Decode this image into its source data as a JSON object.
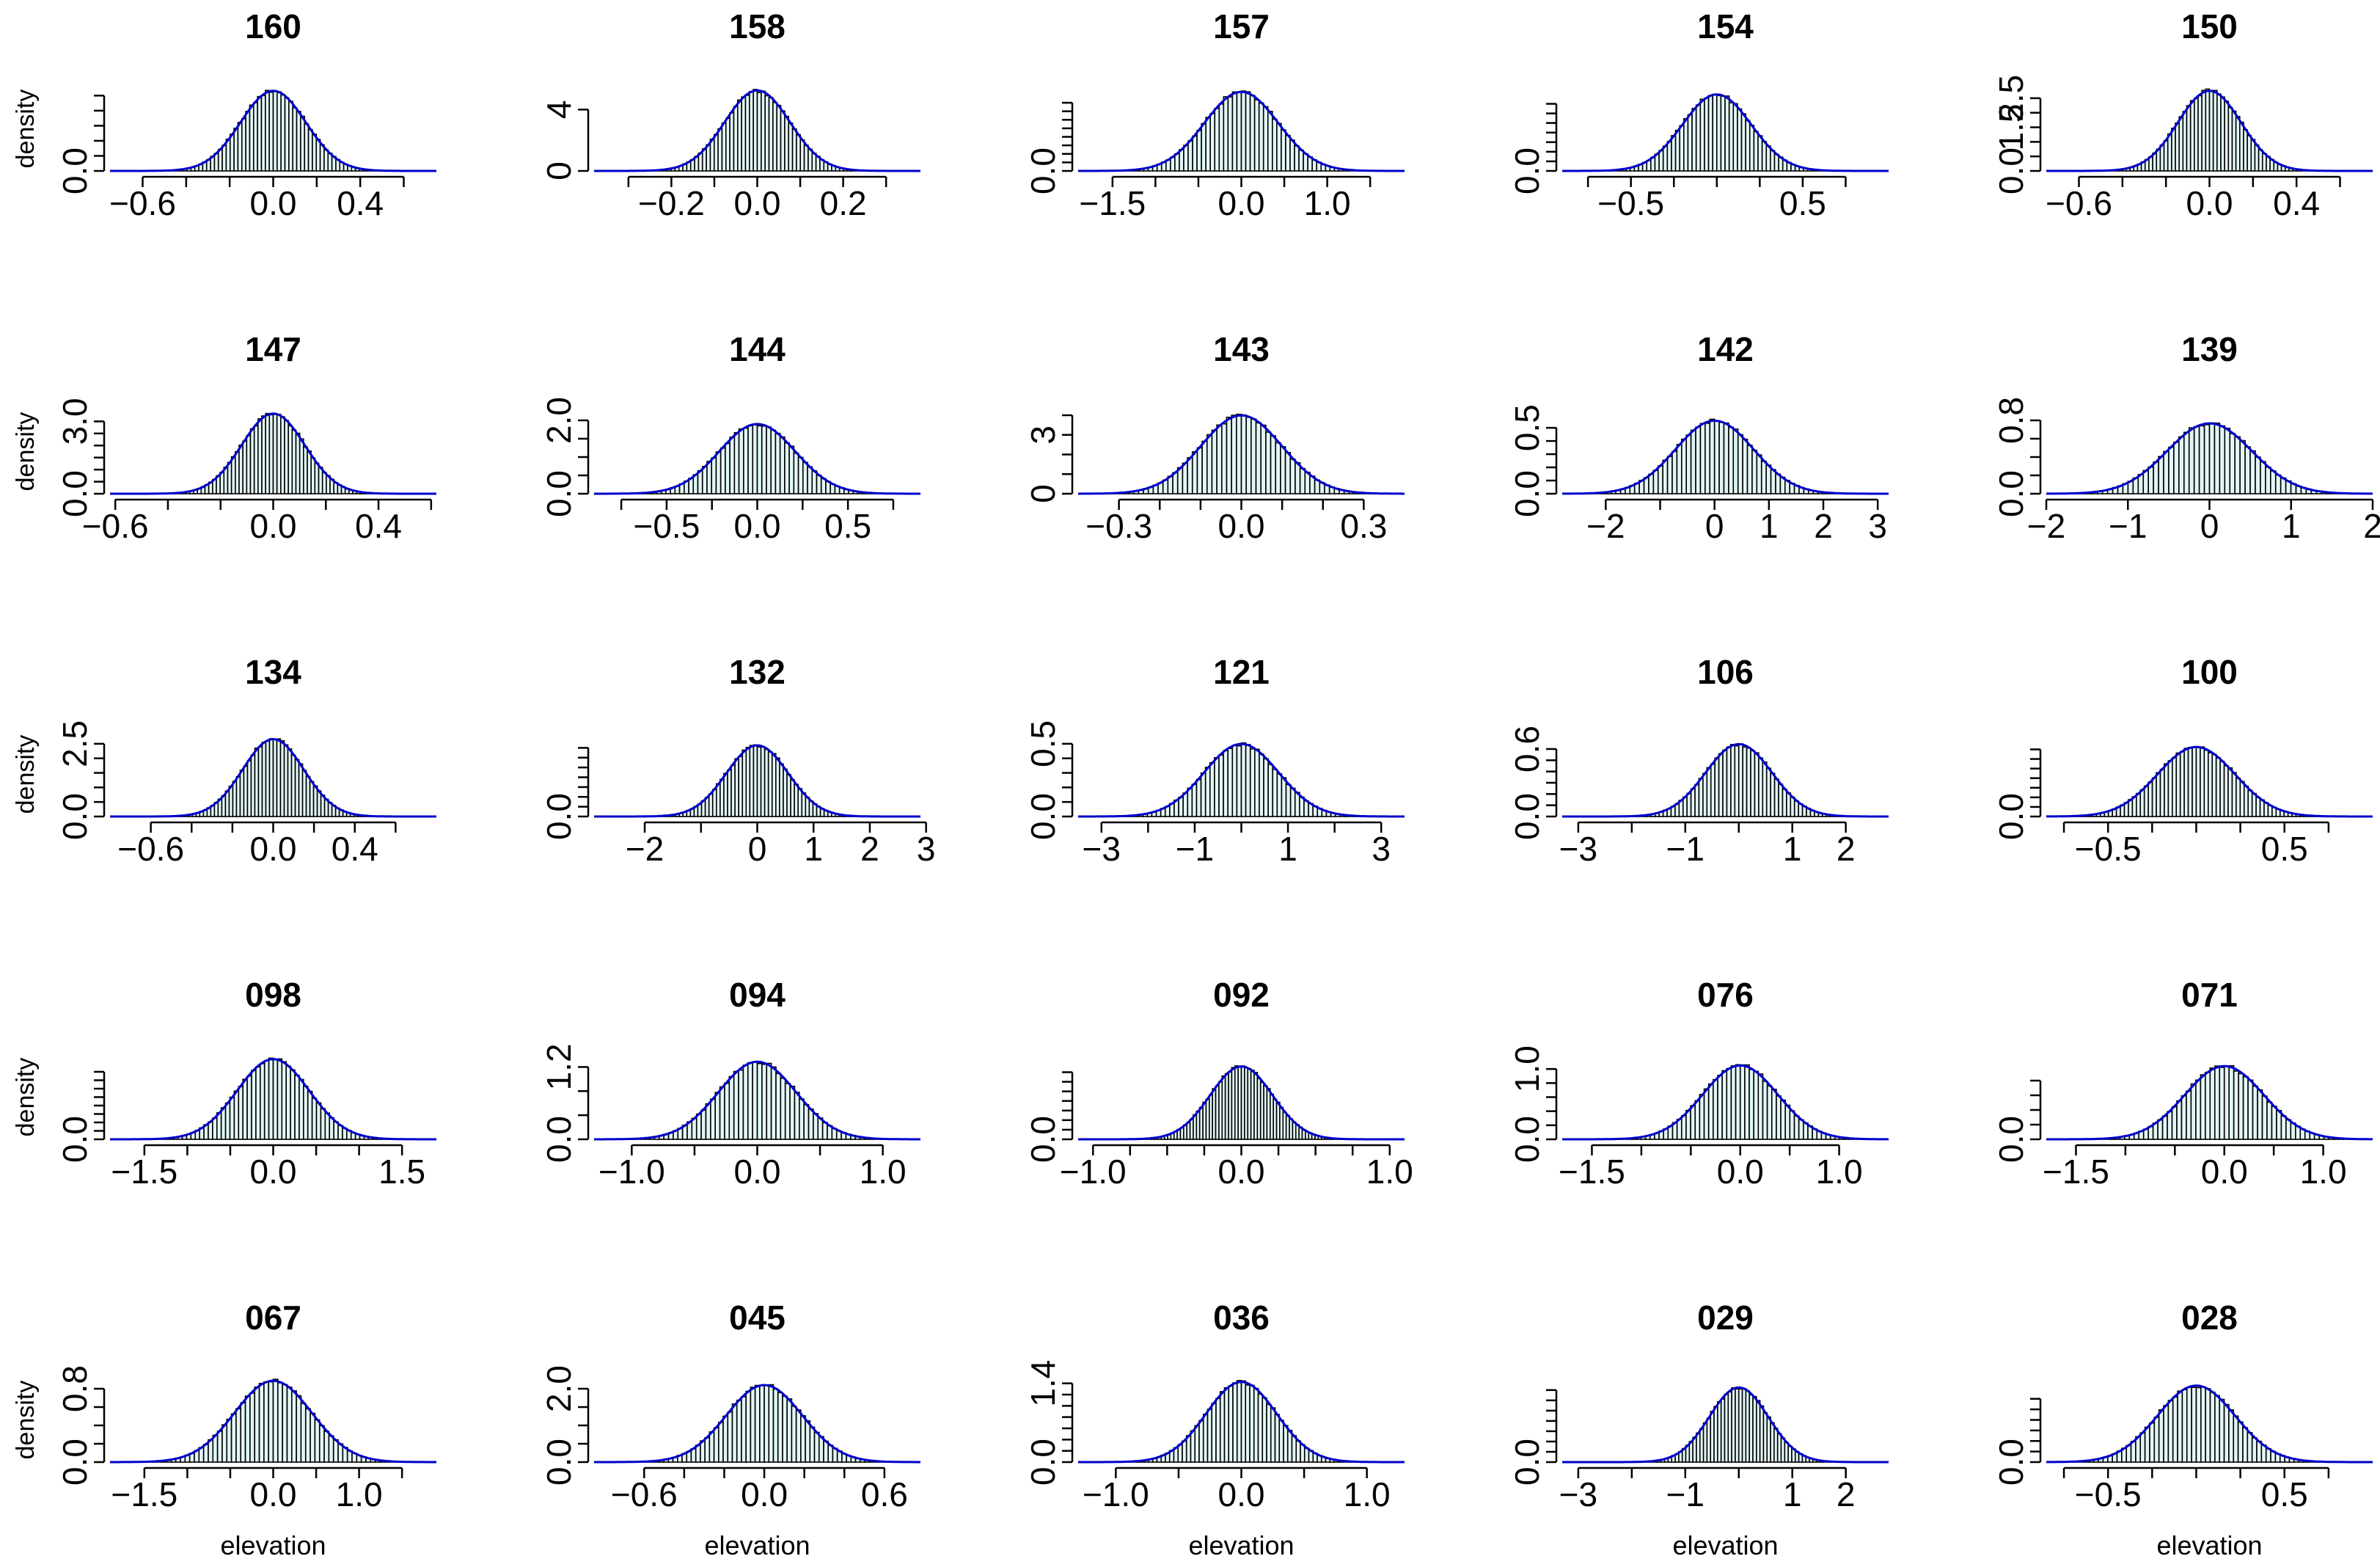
{
  "figure": {
    "ylabel": "density",
    "xlabel": "elevation",
    "colors": {
      "bar_fill": "#e3f5f5",
      "bar_stroke": "#000000",
      "curve": "#0000cc",
      "axis": "#000000"
    }
  },
  "chart_data": [
    {
      "type": "bar",
      "title": "160",
      "sd": 0.15,
      "xlim": [
        -0.75,
        0.75
      ],
      "xticks": [
        -0.6,
        -0.4,
        -0.2,
        0.0,
        0.2,
        0.4,
        0.6
      ],
      "xticklabels": [
        "−0.6",
        "",
        "",
        "0.0",
        "",
        "0.4",
        ""
      ],
      "ylim": [
        0,
        2.8
      ],
      "yticks": [
        0,
        0.5,
        1.0,
        1.5,
        2.0,
        2.5
      ],
      "yticklabels": [
        "0.0",
        "",
        "",
        "",
        "",
        ""
      ],
      "bins": 60
    },
    {
      "type": "bar",
      "title": "158",
      "sd": 0.076,
      "xlim": [
        -0.38,
        0.38
      ],
      "xticks": [
        -0.3,
        -0.2,
        -0.1,
        0.0,
        0.1,
        0.2,
        0.3
      ],
      "xticklabels": [
        "",
        "−0.2",
        "",
        "0.0",
        "",
        "0.2",
        ""
      ],
      "ylim": [
        0,
        5.5
      ],
      "yticks": [
        0,
        4
      ],
      "yticklabels": [
        "0",
        "4"
      ],
      "bins": 60
    },
    {
      "type": "bar",
      "title": "157",
      "sd": 0.43,
      "xlim": [
        -1.9,
        1.9
      ],
      "xticks": [
        -1.5,
        -1.0,
        -0.5,
        0.0,
        0.5,
        1.0,
        1.5
      ],
      "xticklabels": [
        "−1.5",
        "",
        "",
        "0.0",
        "",
        "1.0",
        ""
      ],
      "ylim": [
        0,
        0.99
      ],
      "yticks": [
        0,
        0.1,
        0.2,
        0.3,
        0.4,
        0.5,
        0.6,
        0.7,
        0.8
      ],
      "yticklabels": [
        "0.0",
        "",
        "",
        "",
        "",
        "",
        "",
        "",
        ""
      ],
      "bins": 60
    },
    {
      "type": "bar",
      "title": "154",
      "sd": 0.2,
      "xlim": [
        -0.9,
        1.0
      ],
      "xticks": [
        -0.75,
        -0.5,
        -0.25,
        0.0,
        0.25,
        0.5,
        0.75
      ],
      "xticklabels": [
        "",
        "−0.5",
        "",
        "",
        "",
        "0.5",
        ""
      ],
      "ylim": [
        0,
        2.2
      ],
      "yticks": [
        0,
        0.25,
        0.5,
        0.75,
        1.0,
        1.25,
        1.5,
        1.75
      ],
      "yticklabels": [
        "0.0",
        "",
        "",
        "",
        "",
        "",
        "",
        ""
      ],
      "bins": 60
    },
    {
      "type": "bar",
      "title": "150",
      "sd": 0.145,
      "xlim": [
        -0.75,
        0.75
      ],
      "xticks": [
        -0.6,
        -0.4,
        -0.2,
        0.0,
        0.2,
        0.4,
        0.6
      ],
      "xticklabels": [
        "−0.6",
        "",
        "",
        "0.0",
        "",
        "0.4",
        ""
      ],
      "ylim": [
        0,
        2.9
      ],
      "yticks": [
        0,
        0.5,
        1.0,
        1.5,
        2.0,
        2.5
      ],
      "yticklabels": [
        "0.0",
        "",
        "",
        "1.5",
        "",
        "2.5"
      ],
      "bins": 60
    },
    {
      "type": "bar",
      "title": "147",
      "sd": 0.12,
      "xlim": [
        -0.62,
        0.62
      ],
      "xticks": [
        -0.6,
        -0.4,
        -0.2,
        0.0,
        0.2,
        0.4,
        0.6
      ],
      "xticklabels": [
        "−0.6",
        "",
        "",
        "0.0",
        "",
        "0.4",
        ""
      ],
      "ylim": [
        0,
        3.5
      ],
      "yticks": [
        0,
        0.5,
        1.0,
        1.5,
        2.0,
        2.5,
        3.0
      ],
      "yticklabels": [
        "0.0",
        "",
        "",
        "",
        "",
        "",
        "3.0"
      ],
      "bins": 60
    },
    {
      "type": "bar",
      "title": "144",
      "sd": 0.21,
      "xlim": [
        -0.9,
        0.9
      ],
      "xticks": [
        -0.75,
        -0.5,
        -0.25,
        0.0,
        0.25,
        0.5,
        0.75
      ],
      "xticklabels": [
        "",
        "−0.5",
        "",
        "0.0",
        "",
        "0.5",
        ""
      ],
      "ylim": [
        0,
        2.3
      ],
      "yticks": [
        0,
        0.5,
        1.0,
        1.5,
        2.0
      ],
      "yticklabels": [
        "0.0",
        "",
        "",
        "",
        "2.0"
      ],
      "bins": 60
    },
    {
      "type": "bar",
      "title": "143",
      "sd": 0.1,
      "xlim": [
        -0.4,
        0.4
      ],
      "xticks": [
        -0.3,
        -0.2,
        -0.1,
        0.0,
        0.1,
        0.2,
        0.3
      ],
      "xticklabels": [
        "−0.3",
        "",
        "",
        "0.0",
        "",
        "",
        "0.3"
      ],
      "ylim": [
        0,
        4.3
      ],
      "yticks": [
        0,
        1,
        2,
        3,
        4
      ],
      "yticklabels": [
        "0",
        "",
        "",
        "3",
        ""
      ],
      "bins": 60
    },
    {
      "type": "bar",
      "title": "142",
      "sd": 0.72,
      "xlim": [
        -2.8,
        3.2
      ],
      "xticks": [
        -2,
        -1,
        0,
        1,
        2,
        3
      ],
      "xticklabels": [
        "−2",
        "",
        "0",
        "1",
        "2",
        "3"
      ],
      "ylim": [
        0,
        0.64
      ],
      "yticks": [
        0,
        0.1,
        0.2,
        0.3,
        0.4,
        0.5
      ],
      "yticklabels": [
        "0.0",
        "",
        "",
        "",
        "",
        "0.5"
      ],
      "bins": 60
    },
    {
      "type": "bar",
      "title": "139",
      "sd": 0.52,
      "xlim": [
        -2.0,
        2.0
      ],
      "xticks": [
        -2,
        -1,
        0,
        1,
        2
      ],
      "xticklabels": [
        "−2",
        "−1",
        "0",
        "1",
        "2"
      ],
      "ylim": [
        0,
        0.92
      ],
      "yticks": [
        0,
        0.2,
        0.4,
        0.6,
        0.8
      ],
      "yticklabels": [
        "0.0",
        "",
        "",
        "",
        "0.8"
      ],
      "bins": 60
    },
    {
      "type": "bar",
      "title": "134",
      "sd": 0.15,
      "xlim": [
        -0.8,
        0.8
      ],
      "xticks": [
        -0.6,
        -0.4,
        -0.2,
        0.0,
        0.2,
        0.4,
        0.6
      ],
      "xticklabels": [
        "−0.6",
        "",
        "",
        "0.0",
        "",
        "0.4",
        ""
      ],
      "ylim": [
        0,
        2.9
      ],
      "yticks": [
        0,
        0.5,
        1.0,
        1.5,
        2.0,
        2.5
      ],
      "yticklabels": [
        "0.0",
        "",
        "",
        "",
        "",
        "2.5"
      ],
      "bins": 60
    },
    {
      "type": "bar",
      "title": "132",
      "sd": 0.55,
      "xlim": [
        -2.9,
        2.9
      ],
      "xticks": [
        -2,
        -1,
        0,
        1,
        2,
        3
      ],
      "xticklabels": [
        "−2",
        "",
        "0",
        "1",
        "2",
        "3"
      ],
      "ylim": [
        0,
        0.86
      ],
      "yticks": [
        0,
        0.1,
        0.2,
        0.3,
        0.4,
        0.5,
        0.6,
        0.7
      ],
      "yticklabels": [
        "0.0",
        "",
        "",
        "",
        "",
        "",
        "",
        ""
      ],
      "bins": 60
    },
    {
      "type": "bar",
      "title": "121",
      "sd": 0.8,
      "xlim": [
        -3.5,
        3.5
      ],
      "xticks": [
        -3,
        -2,
        -1,
        0,
        1,
        2,
        3
      ],
      "xticklabels": [
        "−3",
        "",
        "−1",
        "",
        "1",
        "",
        "3"
      ],
      "ylim": [
        0,
        0.58
      ],
      "yticks": [
        0,
        0.1,
        0.2,
        0.3,
        0.4,
        0.5
      ],
      "yticklabels": [
        "0.0",
        "",
        "",
        "",
        "",
        "0.5"
      ],
      "bins": 60
    },
    {
      "type": "bar",
      "title": "106",
      "sd": 0.62,
      "xlim": [
        -3.3,
        2.8
      ],
      "xticks": [
        -3,
        -2,
        -1,
        0,
        1,
        2
      ],
      "xticklabels": [
        "−3",
        "",
        "−1",
        "",
        "1",
        "2"
      ],
      "ylim": [
        0,
        0.75
      ],
      "yticks": [
        0,
        0.1,
        0.2,
        0.3,
        0.4,
        0.5,
        0.6
      ],
      "yticklabels": [
        "0.0",
        "",
        "",
        "",
        "",
        "",
        "0.6"
      ],
      "bins": 60
    },
    {
      "type": "bar",
      "title": "100",
      "sd": 0.22,
      "xlim": [
        -0.85,
        1.0
      ],
      "xticks": [
        -0.75,
        -0.5,
        -0.25,
        0.0,
        0.25,
        0.5,
        0.75
      ],
      "xticklabels": [
        "",
        "−0.5",
        "",
        "",
        "",
        "0.5",
        ""
      ],
      "ylim": [
        0,
        2.2
      ],
      "yticks": [
        0,
        0.25,
        0.5,
        0.75,
        1.0,
        1.25,
        1.5,
        1.75
      ],
      "yticklabels": [
        "0.0",
        "",
        "",
        "",
        "",
        "",
        "",
        ""
      ],
      "bins": 70
    },
    {
      "type": "bar",
      "title": "098",
      "sd": 0.42,
      "xlim": [
        -1.9,
        1.9
      ],
      "xticks": [
        -1.5,
        -1.0,
        -0.5,
        0.0,
        0.5,
        1.0,
        1.5
      ],
      "xticklabels": [
        "−1.5",
        "",
        "",
        "0.0",
        "",
        "",
        "1.5"
      ],
      "ylim": [
        0,
        1.0
      ],
      "yticks": [
        0,
        0.1,
        0.2,
        0.3,
        0.4,
        0.5,
        0.6,
        0.7,
        0.8
      ],
      "yticklabels": [
        "0.0",
        "",
        "",
        "",
        "",
        "",
        "",
        "",
        ""
      ],
      "bins": 60
    },
    {
      "type": "bar",
      "title": "094",
      "sd": 0.31,
      "xlim": [
        -1.3,
        1.3
      ],
      "xticks": [
        -1.0,
        -0.5,
        0.0,
        0.5,
        1.0
      ],
      "xticklabels": [
        "−1.0",
        "",
        "0.0",
        "",
        "1.0"
      ],
      "ylim": [
        0,
        1.4
      ],
      "yticks": [
        0,
        0.4,
        0.8,
        1.2
      ],
      "yticklabels": [
        "0.0",
        "",
        "",
        "1.2"
      ],
      "bins": 60
    },
    {
      "type": "bar",
      "title": "092",
      "sd": 0.21,
      "xlim": [
        -1.1,
        1.1
      ],
      "xticks": [
        -1.0,
        -0.75,
        -0.5,
        -0.25,
        0.0,
        0.25,
        0.5,
        0.75,
        1.0
      ],
      "xticklabels": [
        "−1.0",
        "",
        "",
        "",
        "0.0",
        "",
        "",
        "",
        "1.0"
      ],
      "ylim": [
        0,
        2.2
      ],
      "yticks": [
        0,
        0.25,
        0.5,
        0.75,
        1.0,
        1.25,
        1.5,
        1.75
      ],
      "yticklabels": [
        "0.0",
        "",
        "",
        "",
        "",
        "",
        "",
        ""
      ],
      "bins": 70
    },
    {
      "type": "bar",
      "title": "076",
      "sd": 0.38,
      "xlim": [
        -1.8,
        1.5
      ],
      "xticks": [
        -1.5,
        -1.0,
        -0.5,
        0.0,
        0.5,
        1.0
      ],
      "xticklabels": [
        "−1.5",
        "",
        "",
        "0.0",
        "",
        "1.0"
      ],
      "ylim": [
        0,
        1.2
      ],
      "yticks": [
        0,
        0.2,
        0.4,
        0.6,
        0.8,
        1.0
      ],
      "yticklabels": [
        "0.0",
        "",
        "",
        "",
        "",
        "1.0"
      ],
      "bins": 60
    },
    {
      "type": "bar",
      "title": "071",
      "sd": 0.4,
      "xlim": [
        -1.8,
        1.5
      ],
      "xticks": [
        -1.5,
        -1.0,
        -0.5,
        0.0,
        0.5,
        1.0
      ],
      "xticklabels": [
        "−1.5",
        "",
        "",
        "0.0",
        "",
        "1.0"
      ],
      "ylim": [
        0,
        1.15
      ],
      "yticks": [
        0,
        0.2,
        0.4,
        0.6,
        0.8
      ],
      "yticklabels": [
        "0.0",
        "",
        "",
        "",
        ""
      ],
      "bins": 60
    },
    {
      "type": "bar",
      "title": "067",
      "sd": 0.45,
      "xlim": [
        -1.9,
        1.9
      ],
      "xticks": [
        -1.5,
        -1.0,
        -0.5,
        0.0,
        0.5,
        1.0,
        1.5
      ],
      "xticklabels": [
        "−1.5",
        "",
        "",
        "0.0",
        "",
        "1.0",
        ""
      ],
      "ylim": [
        0,
        0.92
      ],
      "yticks": [
        0,
        0.2,
        0.4,
        0.6,
        0.8
      ],
      "yticklabels": [
        "0.0",
        "",
        "",
        "",
        "0.8"
      ],
      "bins": 60
    },
    {
      "type": "bar",
      "title": "045",
      "sd": 0.19,
      "xlim": [
        -0.85,
        0.78
      ],
      "xticks": [
        -0.6,
        -0.4,
        -0.2,
        0.0,
        0.2,
        0.4,
        0.6
      ],
      "xticklabels": [
        "−0.6",
        "",
        "",
        "0.0",
        "",
        "",
        "0.6"
      ],
      "ylim": [
        0,
        2.3
      ],
      "yticks": [
        0,
        0.5,
        1.0,
        1.5,
        2.0
      ],
      "yticklabels": [
        "0.0",
        "",
        "",
        "",
        "2.0"
      ],
      "bins": 60
    },
    {
      "type": "bar",
      "title": "036",
      "sd": 0.28,
      "xlim": [
        -1.3,
        1.3
      ],
      "xticks": [
        -1.0,
        -0.5,
        0.0,
        0.5,
        1.0
      ],
      "xticklabels": [
        "−1.0",
        "",
        "0.0",
        "",
        "1.0"
      ],
      "ylim": [
        0,
        1.5
      ],
      "yticks": [
        0,
        0.2,
        0.4,
        0.6,
        0.8,
        1.0,
        1.2,
        1.4
      ],
      "yticklabels": [
        "0.0",
        "",
        "",
        "",
        "",
        "",
        "",
        "1.4"
      ],
      "bins": 60
    },
    {
      "type": "bar",
      "title": "029",
      "sd": 0.55,
      "xlim": [
        -3.3,
        2.8
      ],
      "xticks": [
        -3,
        -2,
        -1,
        0,
        1,
        2
      ],
      "xticklabels": [
        "−3",
        "",
        "−1",
        "",
        "1",
        "2"
      ],
      "ylim": [
        0,
        0.82
      ],
      "yticks": [
        0,
        0.1,
        0.2,
        0.3,
        0.4,
        0.5,
        0.6,
        0.7
      ],
      "yticklabels": [
        "0.0",
        "",
        "",
        "",
        "",
        "",
        "",
        ""
      ],
      "bins": 60
    },
    {
      "type": "bar",
      "title": "028",
      "sd": 0.22,
      "xlim": [
        -0.85,
        1.0
      ],
      "xticks": [
        -0.75,
        -0.5,
        -0.25,
        0.0,
        0.25,
        0.5,
        0.75
      ],
      "xticklabels": [
        "",
        "−0.5",
        "",
        "",
        "",
        "0.5",
        ""
      ],
      "ylim": [
        0,
        2.0
      ],
      "yticks": [
        0,
        0.25,
        0.5,
        0.75,
        1.0,
        1.25,
        1.5
      ],
      "yticklabels": [
        "0.0",
        "",
        "",
        "",
        "",
        "",
        ""
      ],
      "bins": 60
    }
  ]
}
